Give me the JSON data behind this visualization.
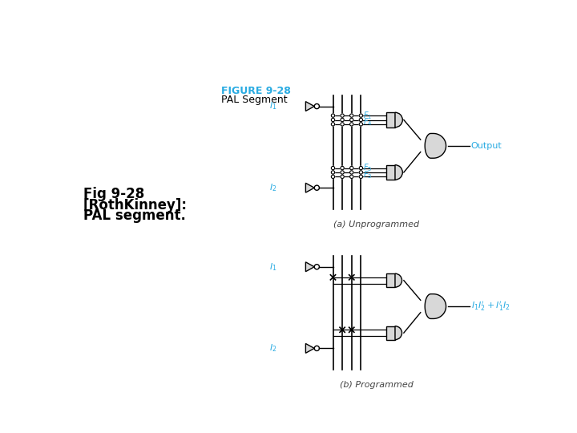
{
  "bg_color": "#ffffff",
  "figure_title": "FIGURE 9-28",
  "figure_subtitle": "PAL Segment",
  "label_color": "#29abe2",
  "line_color": "#000000",
  "gate_fc": "#d8d8d8",
  "text_left": [
    "Fig 9-28",
    "[RothKinney]:",
    "PAL segment."
  ],
  "sub_caption_a": "(a) Unprogrammed",
  "sub_caption_b": "(b) Programmed",
  "output_label": "Output"
}
